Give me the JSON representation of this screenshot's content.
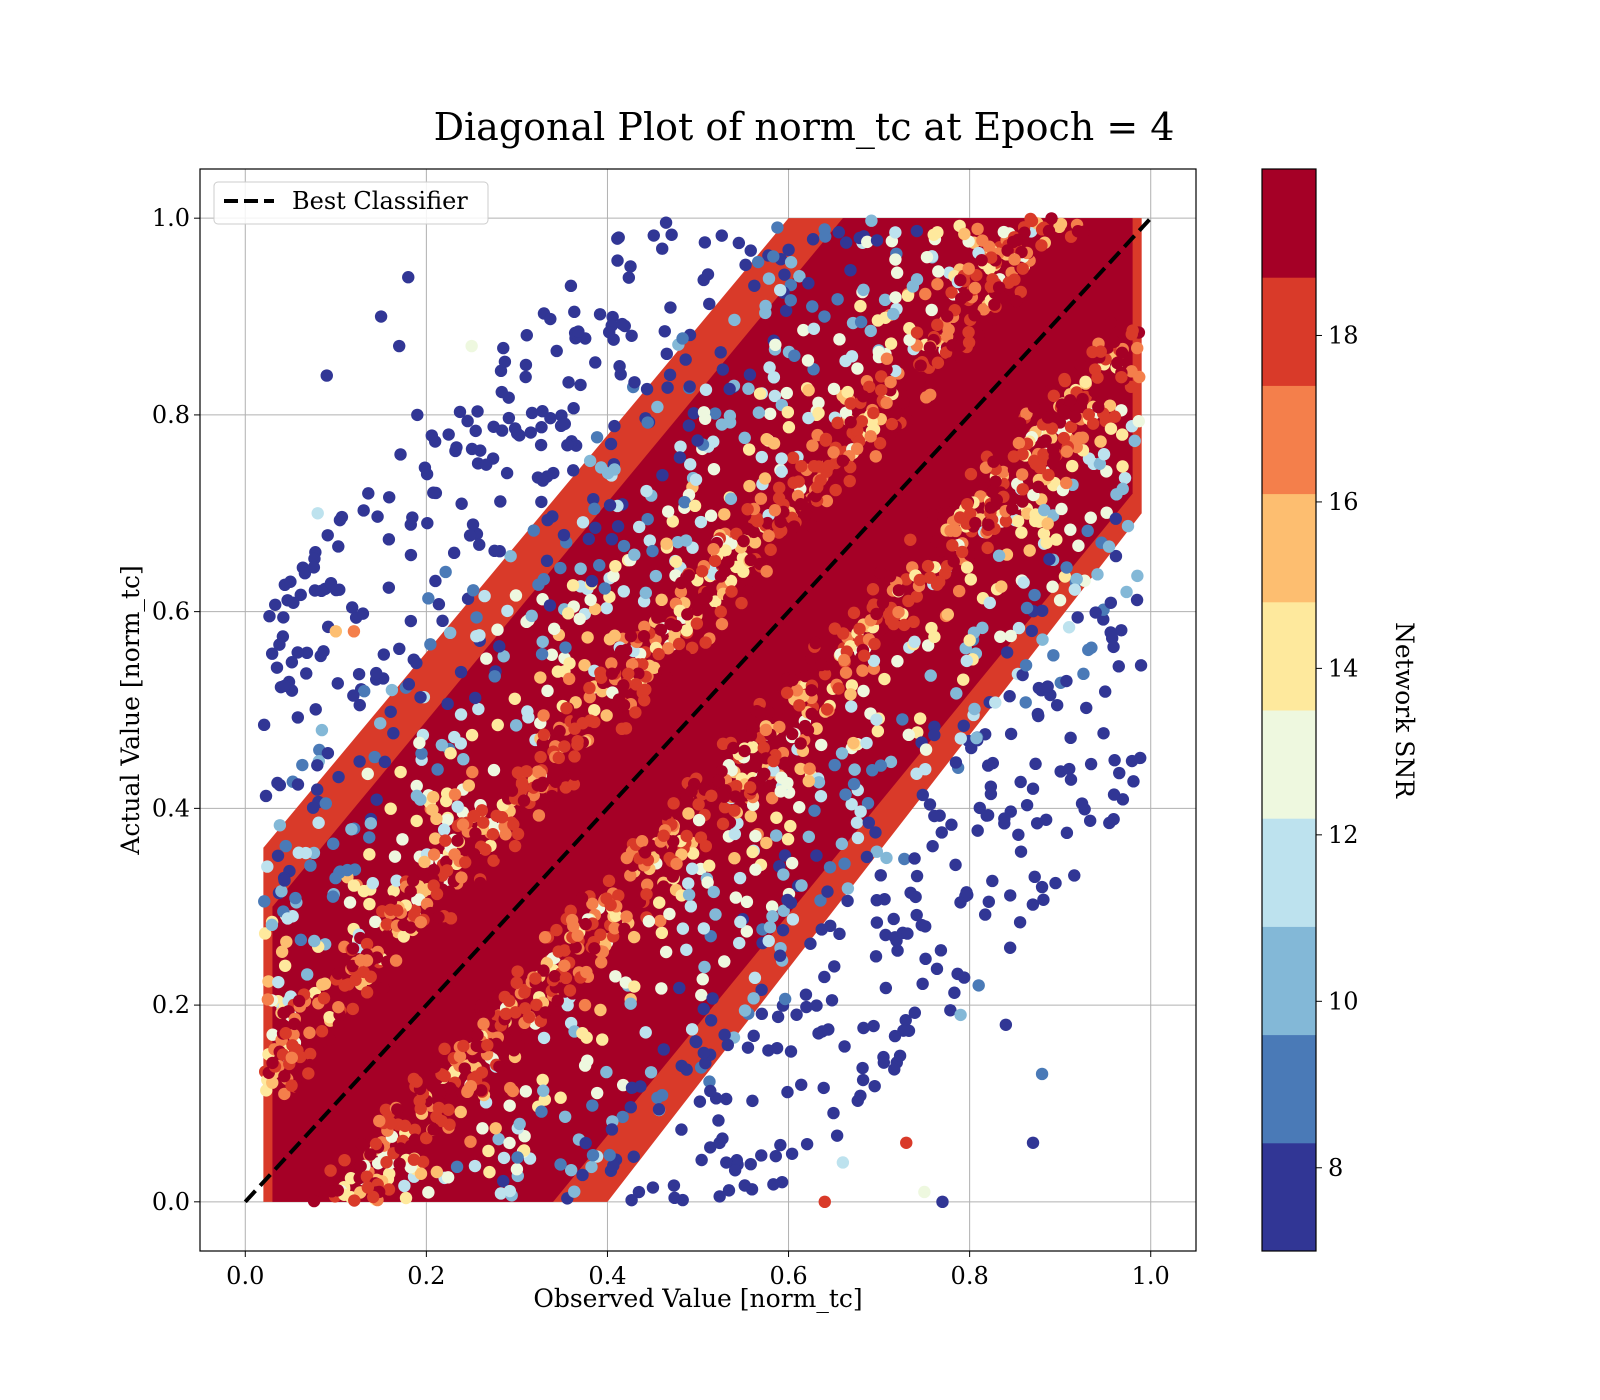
{
  "chart_data": {
    "type": "scatter",
    "title": "Diagonal Plot of norm_tc at Epoch = 4",
    "xlabel": "Observed Value [norm_tc]",
    "ylabel": "Actual Value [norm_tc]",
    "xlim": [
      -0.05,
      1.05
    ],
    "ylim": [
      -0.05,
      1.05
    ],
    "xticks": [
      "0.0",
      "0.2",
      "0.4",
      "0.6",
      "0.8",
      "1.0"
    ],
    "yticks": [
      "0.0",
      "0.2",
      "0.4",
      "0.6",
      "0.8",
      "1.0"
    ],
    "grid": true,
    "legend": {
      "location": "upper-left",
      "entries": [
        {
          "label": "Best Classifier",
          "style": "dashed",
          "color": "#000000"
        }
      ]
    },
    "reference_line": {
      "label": "Best Classifier",
      "from": [
        0.0,
        0.0
      ],
      "to": [
        1.0,
        1.0
      ]
    },
    "colorbar": {
      "label": "Network SNR",
      "range": [
        7,
        20
      ],
      "ticks": [
        "8",
        "10",
        "12",
        "14",
        "16",
        "18"
      ],
      "bin_edges": [
        7,
        8.3,
        9.6,
        10.9,
        12.2,
        13.5,
        14.8,
        16.1,
        17.4,
        18.7,
        20
      ],
      "colors": [
        "#313695",
        "#4a7ab7",
        "#83b8d7",
        "#bde2ee",
        "#eef8df",
        "#fee99d",
        "#fdbe70",
        "#f47f4b",
        "#d93a29",
        "#a50026"
      ]
    },
    "sample_points": [
      {
        "x": 0.1,
        "y": 0.58,
        "snr": 15.5
      },
      {
        "x": 0.09,
        "y": 0.84,
        "snr": 8.0
      },
      {
        "x": 0.08,
        "y": 0.7,
        "snr": 11.0
      },
      {
        "x": 0.12,
        "y": 0.58,
        "snr": 16.5
      },
      {
        "x": 0.15,
        "y": 0.9,
        "snr": 8.0
      },
      {
        "x": 0.17,
        "y": 0.87,
        "snr": 8.0
      },
      {
        "x": 0.18,
        "y": 0.94,
        "snr": 8.0
      },
      {
        "x": 0.19,
        "y": 0.8,
        "snr": 8.0
      },
      {
        "x": 0.25,
        "y": 0.87,
        "snr": 13.0
      },
      {
        "x": 0.91,
        "y": 0.44,
        "snr": 8.0
      },
      {
        "x": 0.88,
        "y": 0.32,
        "snr": 8.0
      },
      {
        "x": 0.87,
        "y": 0.42,
        "snr": 8.0
      },
      {
        "x": 0.88,
        "y": 0.13,
        "snr": 9.5
      },
      {
        "x": 0.87,
        "y": 0.06,
        "snr": 8.0
      },
      {
        "x": 0.64,
        "y": 0.0,
        "snr": 18.0
      },
      {
        "x": 0.75,
        "y": 0.01,
        "snr": 13.0
      },
      {
        "x": 0.73,
        "y": 0.06,
        "snr": 17.5
      },
      {
        "x": 0.84,
        "y": 0.18,
        "snr": 8.0
      },
      {
        "x": 0.79,
        "y": 0.19,
        "snr": 10.5
      },
      {
        "x": 0.81,
        "y": 0.22,
        "snr": 9.0
      },
      {
        "x": 0.77,
        "y": 0.0,
        "snr": 8.0
      },
      {
        "x": 0.66,
        "y": 0.04,
        "snr": 11.0
      }
    ]
  }
}
